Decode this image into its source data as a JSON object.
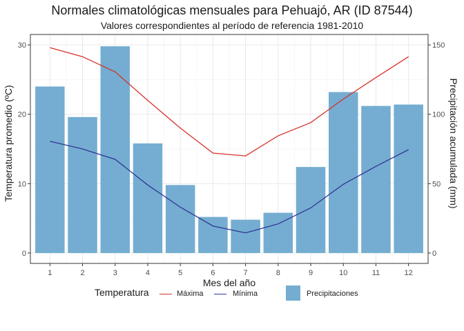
{
  "chart_data": {
    "type": "bar+line",
    "title": "Normales climatológicas mensuales para Pehuajó, AR (ID 87544)",
    "subtitle": "Valores correspondientes al período de referencia 1981-2010",
    "xlabel": "Mes del año",
    "ylabel_left": "Temperatura promedio (ºC)",
    "ylabel_right": "Precipitación acumulada (mm)",
    "categories": [
      "1",
      "2",
      "3",
      "4",
      "5",
      "6",
      "7",
      "8",
      "9",
      "10",
      "11",
      "12"
    ],
    "ylim_left": [
      -1.5,
      31.5
    ],
    "yticks_left": [
      "0",
      "10",
      "20",
      "30"
    ],
    "ylim_right": [
      -7.5,
      157.5
    ],
    "yticks_right": [
      "0",
      "50",
      "100",
      "150"
    ],
    "grid": true,
    "bars": {
      "name": "Precipitaciones",
      "axis": "right",
      "color": "#74add1",
      "values": [
        120,
        98,
        149,
        79,
        49,
        26,
        24,
        29,
        62,
        116,
        106,
        107
      ]
    },
    "lines": [
      {
        "name": "Máxima",
        "axis": "left",
        "color": "#d73027",
        "values": [
          29.6,
          28.3,
          26.1,
          22.0,
          18.0,
          14.4,
          14.0,
          16.9,
          18.8,
          22.2,
          25.3,
          28.3
        ]
      },
      {
        "name": "Mínima",
        "axis": "left",
        "color": "#313695",
        "values": [
          16.1,
          15.0,
          13.5,
          9.8,
          6.6,
          3.9,
          2.9,
          4.2,
          6.5,
          9.9,
          12.5,
          14.9
        ]
      }
    ],
    "legend": {
      "position": "bottom",
      "title": "Temperatura",
      "items": [
        "Máxima",
        "Mínima",
        "Precipitaciones"
      ]
    }
  }
}
